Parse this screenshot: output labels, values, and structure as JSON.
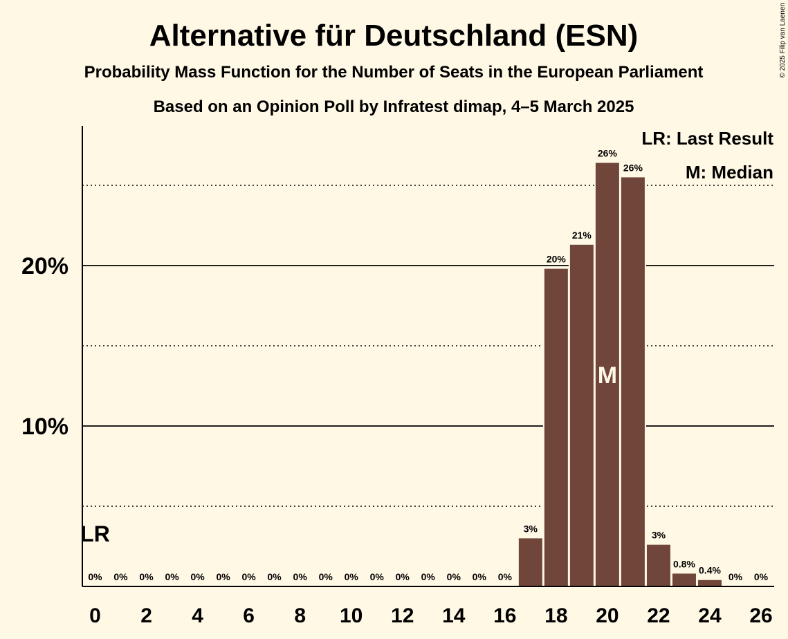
{
  "chart_data": {
    "type": "bar",
    "title": "Alternative für Deutschland (ESN)",
    "subtitle": "Probability Mass Function for the Number of Seats in the European Parliament",
    "subtitle2": "Based on an Opinion Poll by Infratest dimap, 4–5 March 2025",
    "copyright": "© 2025 Filip van Laenen",
    "legend": {
      "last_result": "LR: Last Result",
      "median": "M: Median"
    },
    "last_result_label": "LR",
    "last_result_seat": 0,
    "median_label": "M",
    "median_seat": 20,
    "ylim": [
      0,
      28.6
    ],
    "y_major_ticks": [
      10,
      20
    ],
    "y_major_tick_labels": [
      "10%",
      "20%"
    ],
    "y_minor_gridlines": [
      5,
      15,
      25
    ],
    "x_tick_labels": [
      "0",
      "2",
      "4",
      "6",
      "8",
      "10",
      "12",
      "14",
      "16",
      "18",
      "20",
      "22",
      "24",
      "26"
    ],
    "x": [
      0,
      1,
      2,
      3,
      4,
      5,
      6,
      7,
      8,
      9,
      10,
      11,
      12,
      13,
      14,
      15,
      16,
      17,
      18,
      19,
      20,
      21,
      22,
      23,
      24,
      25,
      26
    ],
    "values": [
      0,
      0,
      0,
      0,
      0,
      0,
      0,
      0,
      0,
      0,
      0,
      0,
      0,
      0,
      0,
      0,
      0,
      3.0,
      19.8,
      21.3,
      26.4,
      25.5,
      2.6,
      0.8,
      0.4,
      0,
      0
    ],
    "data_labels": [
      "0%",
      "0%",
      "0%",
      "0%",
      "0%",
      "0%",
      "0%",
      "0%",
      "0%",
      "0%",
      "0%",
      "0%",
      "0%",
      "0%",
      "0%",
      "0%",
      "0%",
      "3%",
      "20%",
      "21%",
      "26%",
      "26%",
      "3%",
      "0.8%",
      "0.4%",
      "0%",
      "0%"
    ],
    "colors": {
      "bar": "#70463b",
      "background": "#fff8e5",
      "axis": "#000000"
    }
  }
}
